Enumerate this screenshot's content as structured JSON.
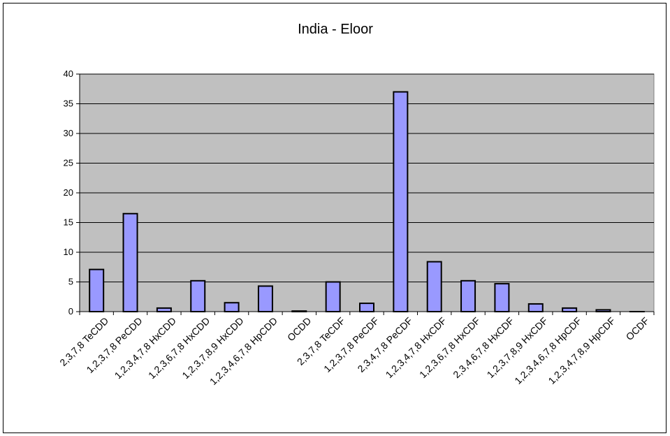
{
  "chart_data": {
    "type": "bar",
    "title": "India - Eloor",
    "xlabel": "",
    "ylabel": "",
    "ylim": [
      0,
      40
    ],
    "yticks": [
      0,
      5,
      10,
      15,
      20,
      25,
      30,
      35,
      40
    ],
    "grid": true,
    "legend": "none",
    "colors": {
      "bar": "#9999ff",
      "plot_background": "#c0c0c0",
      "gridline": "#000000"
    },
    "categories": [
      "2,3,7,8 TeCDD",
      "1,2,3,7,8 PeCDD",
      "1,2,3,4,7,8 HxCDD",
      "1,2,3,6,7,8 HxCDD",
      "1,2,3,7,8,9 HxCDD",
      "1,2,3,4,6,7,8 HpCDD",
      "OCDD",
      "2,3,7,8 TeCDF",
      "1,2,3,7,8 PeCDF",
      "2,3,4,7,8 PeCDF",
      "1,2,3,4,7,8 HxCDF",
      "1,2,3,6,7,8 HxCDF",
      "2,3,4,6,7,8 HxCDF",
      "1,2,3,7,8,9 HxCDF",
      "1,2,3,4,6,7,8 HpCDF",
      "1,2,3,4,7,8,9 HpCDF",
      "OCDF"
    ],
    "values": [
      7.1,
      16.5,
      0.6,
      5.2,
      1.5,
      4.3,
      0.1,
      5.0,
      1.4,
      37.0,
      8.4,
      5.2,
      4.7,
      1.3,
      0.6,
      0.3,
      0.0
    ]
  }
}
